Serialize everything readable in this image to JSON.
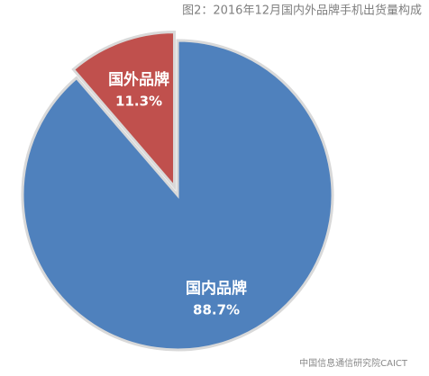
{
  "chart_data": {
    "type": "pie",
    "title": "图2：2016年12月国内外品牌手机出货量构成",
    "categories": [
      "国内品牌",
      "国外品牌"
    ],
    "values": [
      88.7,
      11.3
    ],
    "value_labels": [
      "88.7%",
      "11.3%"
    ],
    "colors": [
      "#4f81bd",
      "#c0504d"
    ],
    "annotation": "中国信息通信研究院CAICT"
  }
}
